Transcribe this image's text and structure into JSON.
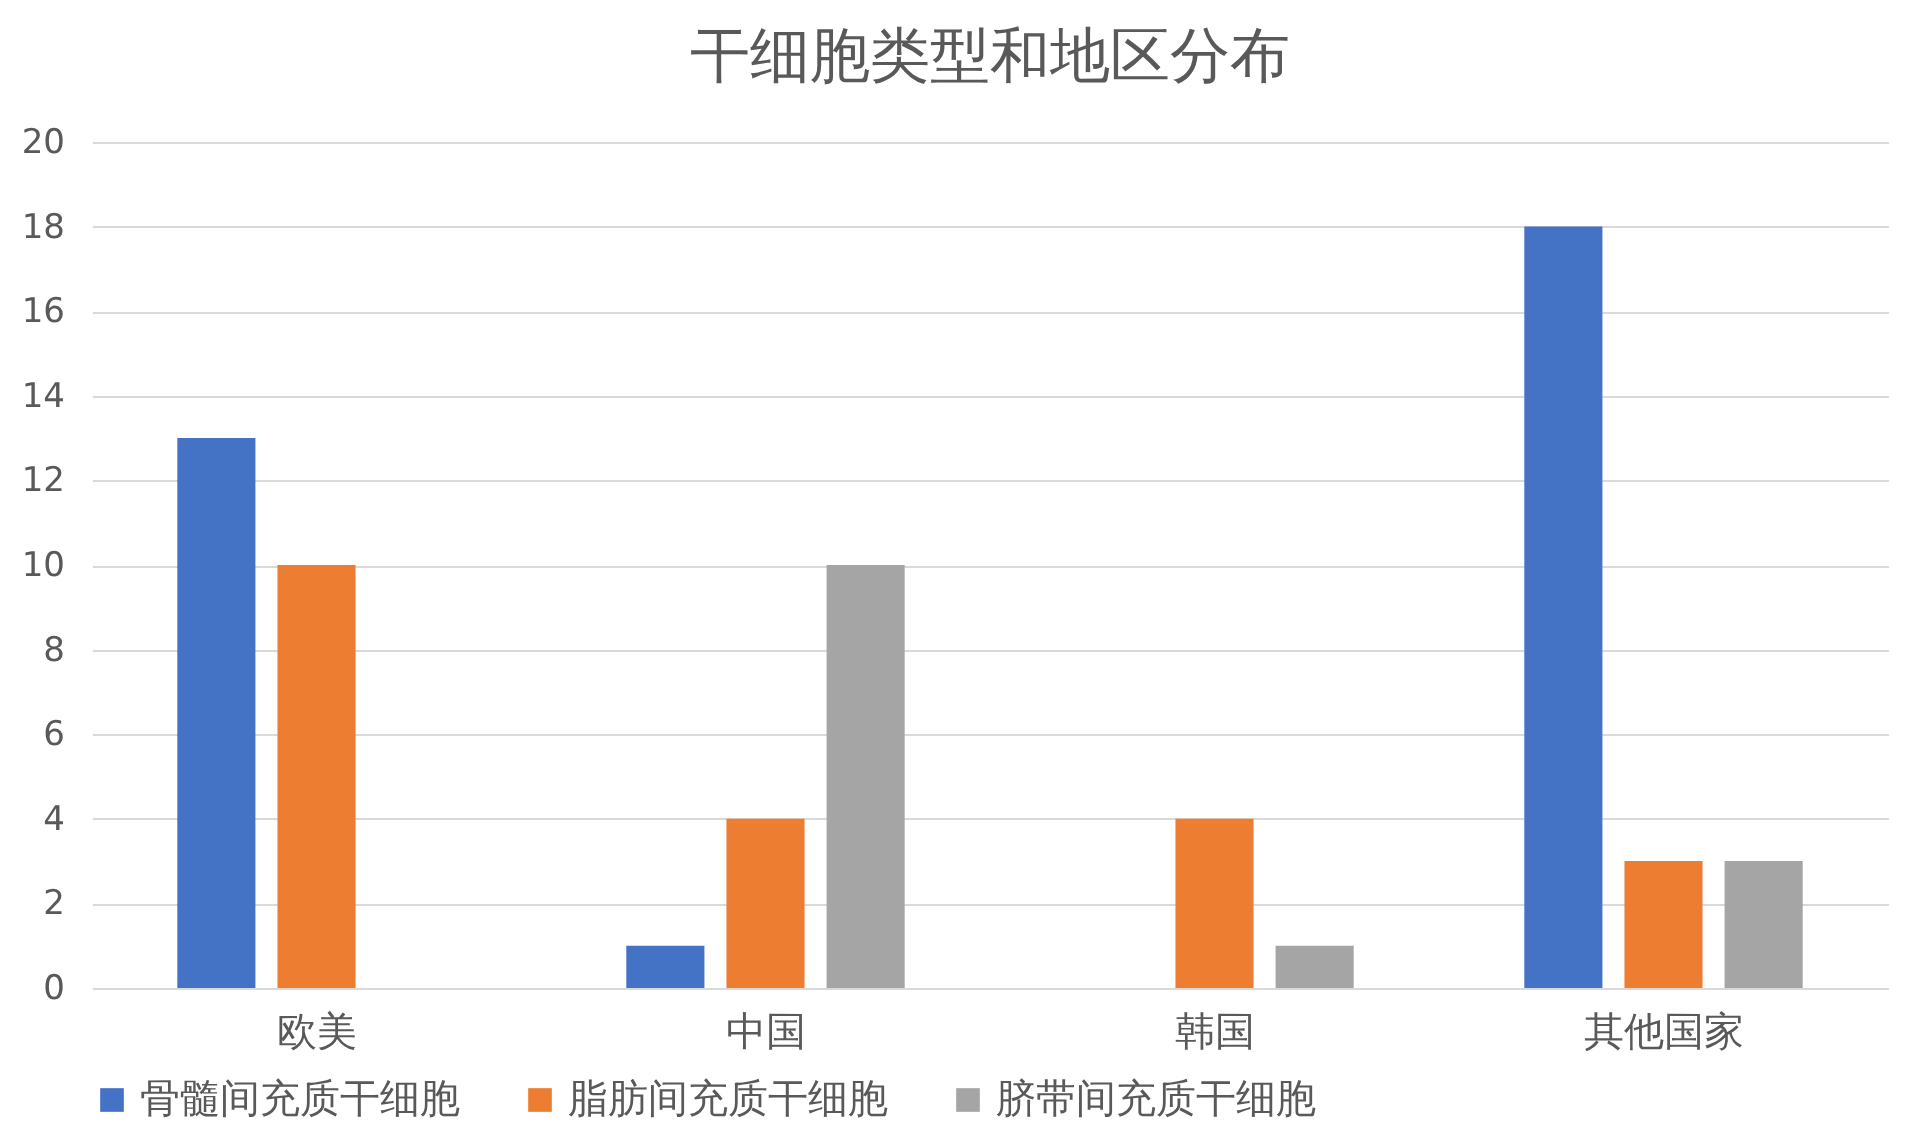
{
  "chart_data": {
    "type": "bar",
    "title": "干细胞类型和地区分布",
    "categories": [
      "欧美",
      "中国",
      "韩国",
      "其他国家"
    ],
    "series": [
      {
        "name": "骨髓间充质干细胞",
        "color": "#4472c4",
        "values": [
          13,
          1,
          0,
          18
        ]
      },
      {
        "name": "脂肪间充质干细胞",
        "color": "#ed7d31",
        "values": [
          10,
          4,
          4,
          3
        ]
      },
      {
        "name": "脐带间充质干细胞",
        "color": "#a5a5a5",
        "values": [
          0,
          10,
          1,
          3
        ]
      }
    ],
    "ylim": [
      0,
      20
    ],
    "yticks": [
      0,
      2,
      4,
      6,
      8,
      10,
      12,
      14,
      16,
      18,
      20
    ],
    "grid": "y",
    "legend": "bottom"
  }
}
